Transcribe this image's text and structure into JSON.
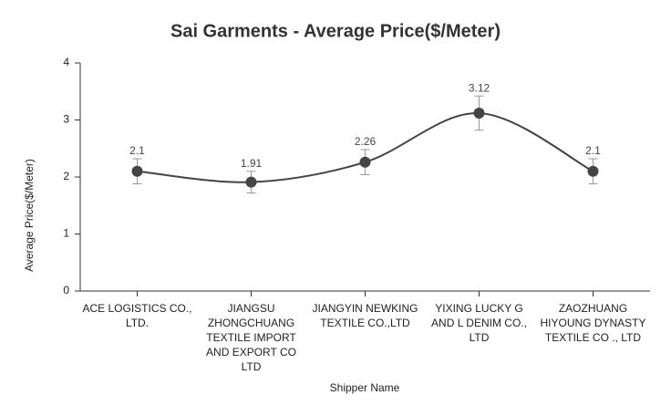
{
  "chart_data": {
    "type": "line",
    "title": "Sai Garments - Average Price($/Meter)",
    "x_label": "Shipper Name",
    "y_label": "Average Price($/Meter)",
    "categories": [
      "ACE LOGISTICS CO., LTD.",
      "JIANGSU ZHONGCHUANG TEXTILE IMPORT AND EXPORT CO LTD",
      "JIANGYIN NEWKING TEXTILE CO.,LTD",
      "YIXING LUCKY G AND L DENIM CO., LTD",
      "ZAOZHUANG HIYOUNG DYNASTY TEXTILE CO ., LTD"
    ],
    "series": [
      {
        "name": "Average Price",
        "color": "#444444",
        "values": [
          2.1,
          1.91,
          2.26,
          3.12,
          2.1
        ],
        "errors": [
          0.22,
          0.19,
          0.22,
          0.3,
          0.22
        ]
      }
    ],
    "ylim": [
      0,
      4
    ],
    "yticks": [
      0,
      1,
      2,
      3,
      4
    ],
    "grid": false
  }
}
